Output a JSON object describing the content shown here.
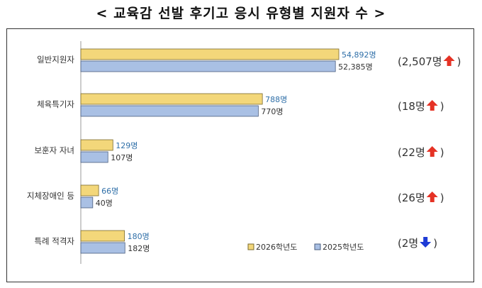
{
  "title": "< 교육감 선발 후기고 응시 유형별 지원자 수 >",
  "colors": {
    "bar_2026": "#f3d77a",
    "bar_2026_stroke": "#7a6a2e",
    "bar_2025": "#a9c0e4",
    "bar_2025_stroke": "#4a5d7e",
    "label_2026": "#2f6fa8",
    "label_2025": "#333333",
    "arrow_up": "#e53225",
    "arrow_down": "#1e3bd6"
  },
  "chart_data": {
    "type": "bar",
    "orientation": "horizontal",
    "title": "< 교육감 선발 후기고 응시 유형별 지원자 수 >",
    "categories": [
      "일반지원자",
      "체육특기자",
      "보훈자 자녀",
      "지체장애인 등",
      "특례 적격자"
    ],
    "series": [
      {
        "name": "2026학년도",
        "values": [
          54892,
          788,
          129,
          66,
          180
        ],
        "labels": [
          "54,892명",
          "788명",
          "129명",
          "66명",
          "180명"
        ]
      },
      {
        "name": "2025학년도",
        "values": [
          52385,
          770,
          107,
          40,
          182
        ],
        "labels": [
          "52,385명",
          "770명",
          "107명",
          "40명",
          "182명"
        ]
      }
    ],
    "changes": [
      {
        "text": "(2,507명",
        "close": ")",
        "direction": "up"
      },
      {
        "text": "(18명",
        "close": ")",
        "direction": "up"
      },
      {
        "text": "(22명",
        "close": ")",
        "direction": "up"
      },
      {
        "text": "(26명",
        "close": ")",
        "direction": "up"
      },
      {
        "text": "(2명",
        "close": ")",
        "direction": "down"
      }
    ],
    "legend": [
      "2026학년도",
      "2025학년도"
    ],
    "legend_position": "bottom-right",
    "grid": false,
    "axis_scale": "broken (not linear)"
  }
}
